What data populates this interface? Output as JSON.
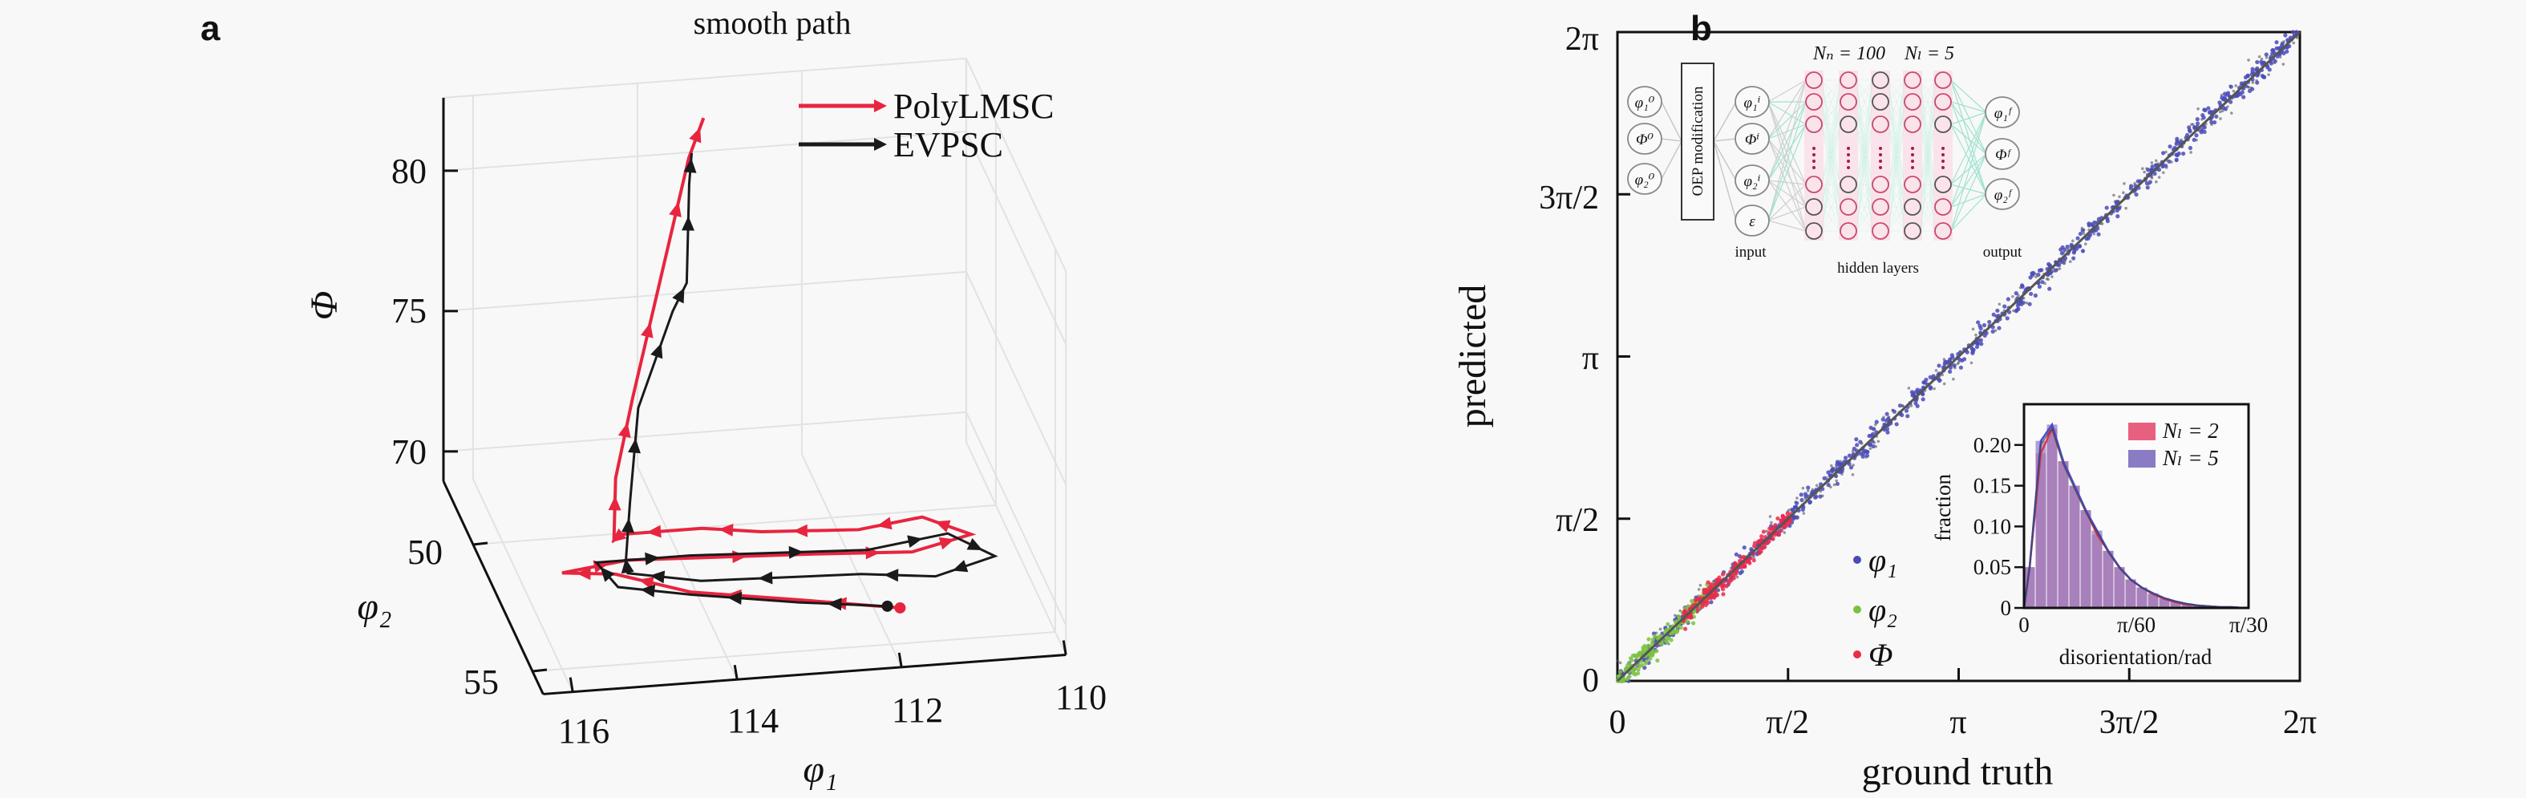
{
  "panel_labels": {
    "a": "a",
    "b": "b"
  },
  "chart_data": [
    {
      "type": "line3d",
      "title": "smooth path",
      "xlabel": "φ₁",
      "ylabel": "φ₂",
      "zlabel": "Φ",
      "x_ticks": [
        "116",
        "114",
        "112",
        "110"
      ],
      "x_tick_values": [
        116,
        114,
        112,
        110
      ],
      "y_ticks": [
        "50",
        "55"
      ],
      "y_tick_values": [
        50,
        55
      ],
      "z_ticks": [
        "70",
        "75",
        "80"
      ],
      "z_tick_values": [
        70,
        75,
        80
      ],
      "xlim": [
        110,
        116.36
      ],
      "ylim": [
        47.5,
        55.9
      ],
      "zlim": [
        68.94,
        82.6
      ],
      "grid": true,
      "legend_position": "top-right",
      "series": [
        {
          "name": "PolyLMSC",
          "color": "#e8253f",
          "points": [
            [
              111.7,
              53.7,
              69
            ],
            [
              112.85,
              53.1,
              69
            ],
            [
              114.07,
              52.5,
              69
            ],
            [
              114.86,
              51.6,
              69
            ],
            [
              115.48,
              51.4,
              69
            ],
            [
              114.64,
              51.1,
              69
            ],
            [
              112.41,
              51.4,
              69
            ],
            [
              111.25,
              51.6,
              69
            ],
            [
              110.46,
              51.1,
              69
            ],
            [
              110.94,
              50.3,
              69
            ],
            [
              111.76,
              50.6,
              69
            ],
            [
              112.91,
              50.4,
              69
            ],
            [
              113.59,
              50.1,
              69
            ],
            [
              114.57,
              50.1,
              69
            ],
            [
              114.69,
              50.3,
              69
            ],
            [
              114.67,
              50.3,
              71.2
            ],
            [
              114.46,
              50.3,
              74.05
            ],
            [
              114.14,
              50.3,
              77.98
            ],
            [
              113.78,
              50.3,
              82.41
            ],
            [
              113.6,
              50.3,
              83.8
            ]
          ]
        },
        {
          "name": "EVPSC",
          "color": "#1a1a1a",
          "points": [
            [
              111.84,
              53.6,
              69
            ],
            [
              112.86,
              53.2,
              69
            ],
            [
              114.08,
              52.6,
              69
            ],
            [
              114.9,
              52.1,
              69
            ],
            [
              115.02,
              51.1,
              69
            ],
            [
              113.88,
              51.1,
              69
            ],
            [
              111.77,
              51.4,
              69
            ],
            [
              110.73,
              51.0,
              69
            ],
            [
              110.3,
              52.0,
              69
            ],
            [
              111.11,
              52.6,
              69
            ],
            [
              111.97,
              52.3,
              69
            ],
            [
              113.89,
              52.1,
              69
            ],
            [
              114.71,
              51.6,
              69
            ],
            [
              114.66,
              51.1,
              69
            ],
            [
              114.61,
              51.1,
              71.07
            ],
            [
              114.51,
              51.1,
              74.39
            ],
            [
              114.09,
              51.1,
              77.75
            ],
            [
              113.92,
              51.1,
              78.72
            ],
            [
              113.89,
              51.1,
              82.25
            ],
            [
              113.86,
              51.1,
              83.33
            ]
          ]
        }
      ]
    },
    {
      "type": "scatter",
      "xlabel": "ground truth",
      "ylabel": "predicted",
      "xlim": [
        0,
        6.2832
      ],
      "ylim": [
        0,
        6.2832
      ],
      "x_ticks": [
        "0",
        "π/2",
        "π",
        "3π/2",
        "2π"
      ],
      "y_ticks": [
        "0",
        "π/2",
        "π",
        "3π/2",
        "2π"
      ],
      "tick_values": [
        0,
        1.5708,
        3.1416,
        4.7124,
        6.2832
      ],
      "reference_line": "y = x",
      "legend_position": "bottom-center",
      "series": [
        {
          "name": "φ₁",
          "color": "#4a4bb8",
          "x_range": [
            0,
            6.2832
          ],
          "noise_sd": 0.05,
          "n": 700
        },
        {
          "name": "φ₂",
          "color": "#7cc242",
          "x_range": [
            0,
            0.9
          ],
          "noise_sd": 0.05,
          "n": 220
        },
        {
          "name": "Φ",
          "color": "#ea2a4c",
          "x_range": [
            0.6,
            1.6
          ],
          "noise_sd": 0.04,
          "n": 220
        }
      ]
    },
    {
      "type": "bar",
      "inset": true,
      "xlabel": "disorientation/rad",
      "ylabel": "fraction",
      "xlim": [
        0,
        0.1047
      ],
      "ylim": [
        0,
        0.25
      ],
      "x_ticks": [
        "0",
        "π/60",
        "π/30"
      ],
      "x_tick_values": [
        0,
        0.05236,
        0.10472
      ],
      "y_ticks": [
        "0",
        "0.05",
        "0.10",
        "0.15",
        "0.20"
      ],
      "y_tick_values": [
        0,
        0.05,
        0.1,
        0.15,
        0.2
      ],
      "bin_width": 0.005236,
      "legend_position": "top-right",
      "series": [
        {
          "name": "Nₗ = 2",
          "color": "#e8607f",
          "values": [
            0.05,
            0.19,
            0.22,
            0.18,
            0.15,
            0.12,
            0.09,
            0.07,
            0.05,
            0.035,
            0.025,
            0.017,
            0.011,
            0.007,
            0.004,
            0.003,
            0.002,
            0.001,
            0.001,
            0.0
          ]
        },
        {
          "name": "Nₗ = 5",
          "color": "#8a7bc4",
          "values": [
            0.05,
            0.205,
            0.225,
            0.18,
            0.15,
            0.12,
            0.095,
            0.07,
            0.05,
            0.035,
            0.025,
            0.018,
            0.012,
            0.008,
            0.005,
            0.003,
            0.002,
            0.001,
            0.001,
            0.0
          ]
        }
      ]
    }
  ],
  "network": {
    "initial": [
      "φ₁⁰",
      "Φ⁰",
      "φ₂⁰"
    ],
    "modification": "OEP modification",
    "inputs": [
      "φ₁ⁱ",
      "Φⁱ",
      "φ₂ⁱ",
      "ε"
    ],
    "outputs": [
      "φ₁ᶠ",
      "Φᶠ",
      "φ₂ᶠ"
    ],
    "nn_label": "Nₙ = 100",
    "nl_label": "Nₗ = 5",
    "input_label": "input",
    "hidden_label": "hidden layers",
    "output_label": "output"
  }
}
